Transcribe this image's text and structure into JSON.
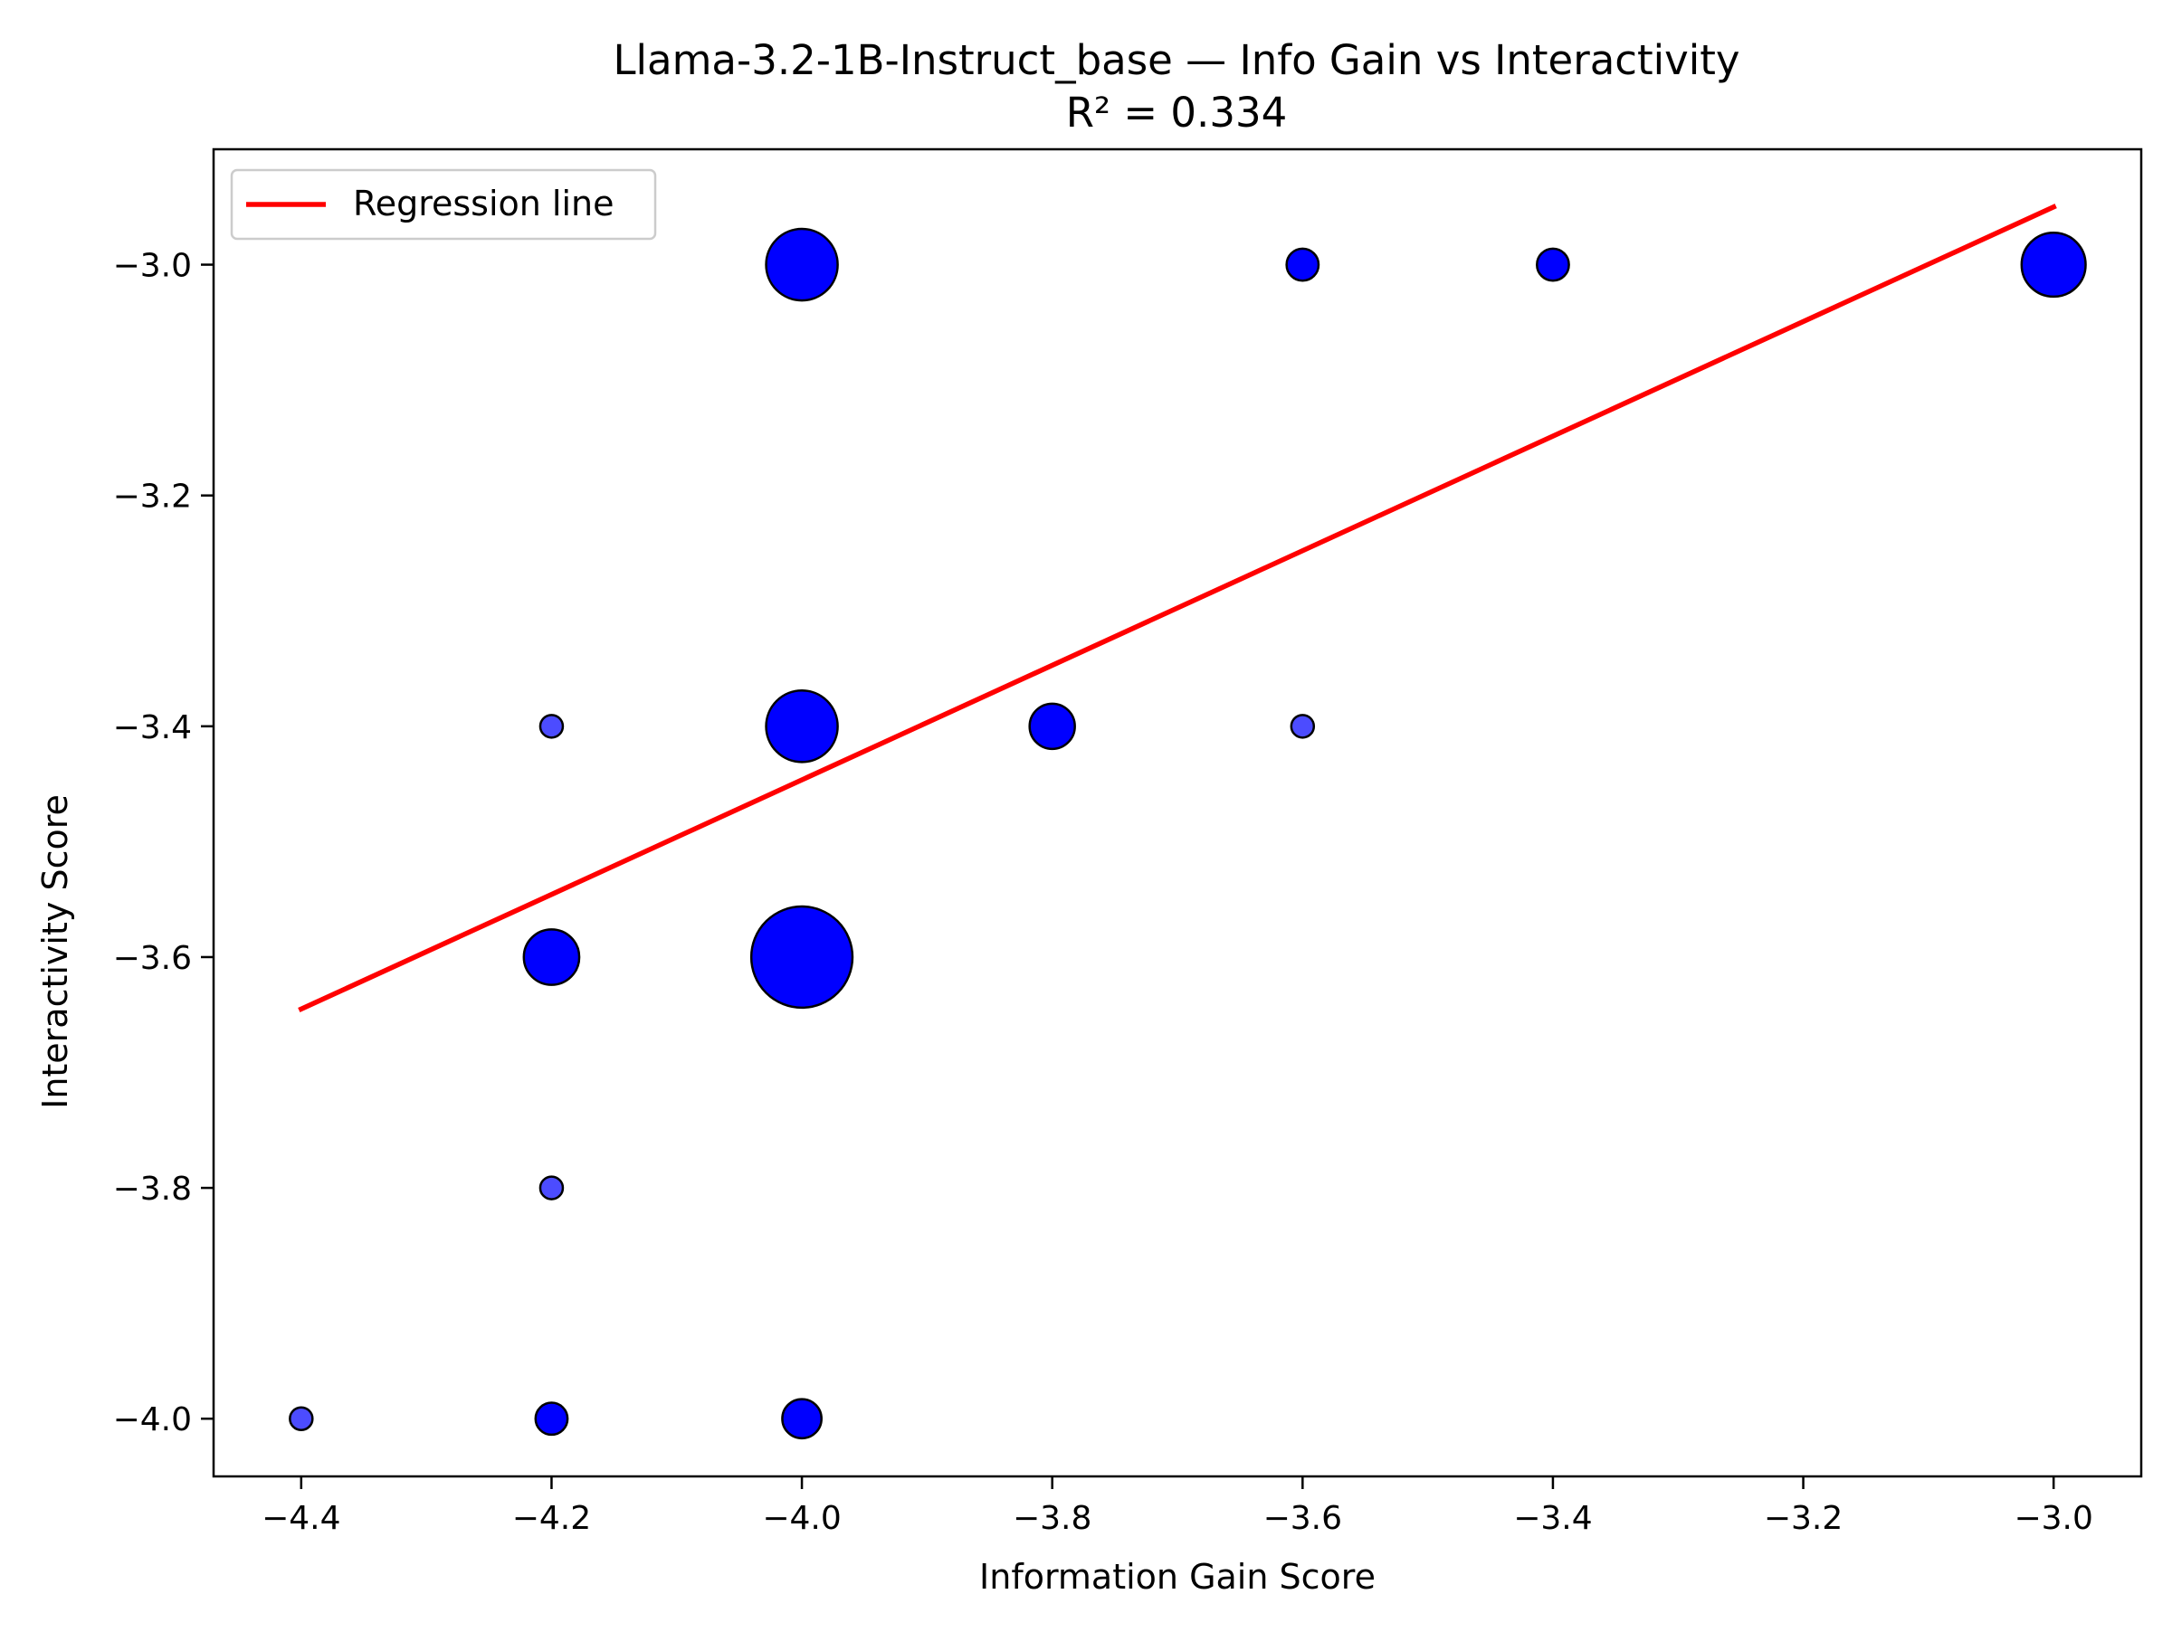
{
  "chart_data": {
    "type": "scatter",
    "title": "Llama-3.2-1B-Instruct_base — Info Gain vs Interactivity",
    "subtitle": "R² = 0.334",
    "xlabel": "Information Gain Score",
    "ylabel": "Interactivity Score",
    "xlim": [
      -4.47,
      -2.93
    ],
    "ylim": [
      -4.05,
      -2.9
    ],
    "xticks": [
      -4.4,
      -4.2,
      -4.0,
      -3.8,
      -3.6,
      -3.4,
      -3.2,
      -3.0
    ],
    "yticks": [
      -3.0,
      -3.2,
      -3.4,
      -3.6,
      -3.8,
      -4.0
    ],
    "xtick_labels": [
      "−4.4",
      "−4.2",
      "−4.0",
      "−3.8",
      "−3.6",
      "−3.4",
      "−3.2",
      "−3.0"
    ],
    "ytick_labels": [
      "−3.0",
      "−3.2",
      "−3.4",
      "−3.6",
      "−3.8",
      "−4.0"
    ],
    "grid": false,
    "legend_placement": "top-left",
    "legend": [
      {
        "label": "Regression line",
        "color": "#ff0000"
      }
    ],
    "point_color": "#0000ff",
    "point_edge_color": "#000000",
    "regression_color": "#ff0000",
    "regression_line": {
      "x": [
        -4.4,
        -3.0
      ],
      "y": [
        -3.645,
        -2.95
      ]
    },
    "points": [
      {
        "x": -4.0,
        "y": -3.0,
        "count": 10
      },
      {
        "x": -3.6,
        "y": -3.0,
        "count": 2
      },
      {
        "x": -3.4,
        "y": -3.0,
        "count": 2
      },
      {
        "x": -3.0,
        "y": -3.0,
        "count": 8
      },
      {
        "x": -4.2,
        "y": -3.4,
        "count": 1
      },
      {
        "x": -4.0,
        "y": -3.4,
        "count": 10
      },
      {
        "x": -3.8,
        "y": -3.4,
        "count": 4
      },
      {
        "x": -3.6,
        "y": -3.4,
        "count": 1
      },
      {
        "x": -4.2,
        "y": -3.6,
        "count": 6
      },
      {
        "x": -4.0,
        "y": -3.6,
        "count": 20
      },
      {
        "x": -4.2,
        "y": -3.8,
        "count": 1
      },
      {
        "x": -4.4,
        "y": -4.0,
        "count": 1
      },
      {
        "x": -4.2,
        "y": -4.0,
        "count": 2
      },
      {
        "x": -4.0,
        "y": -4.0,
        "count": 3
      }
    ]
  }
}
